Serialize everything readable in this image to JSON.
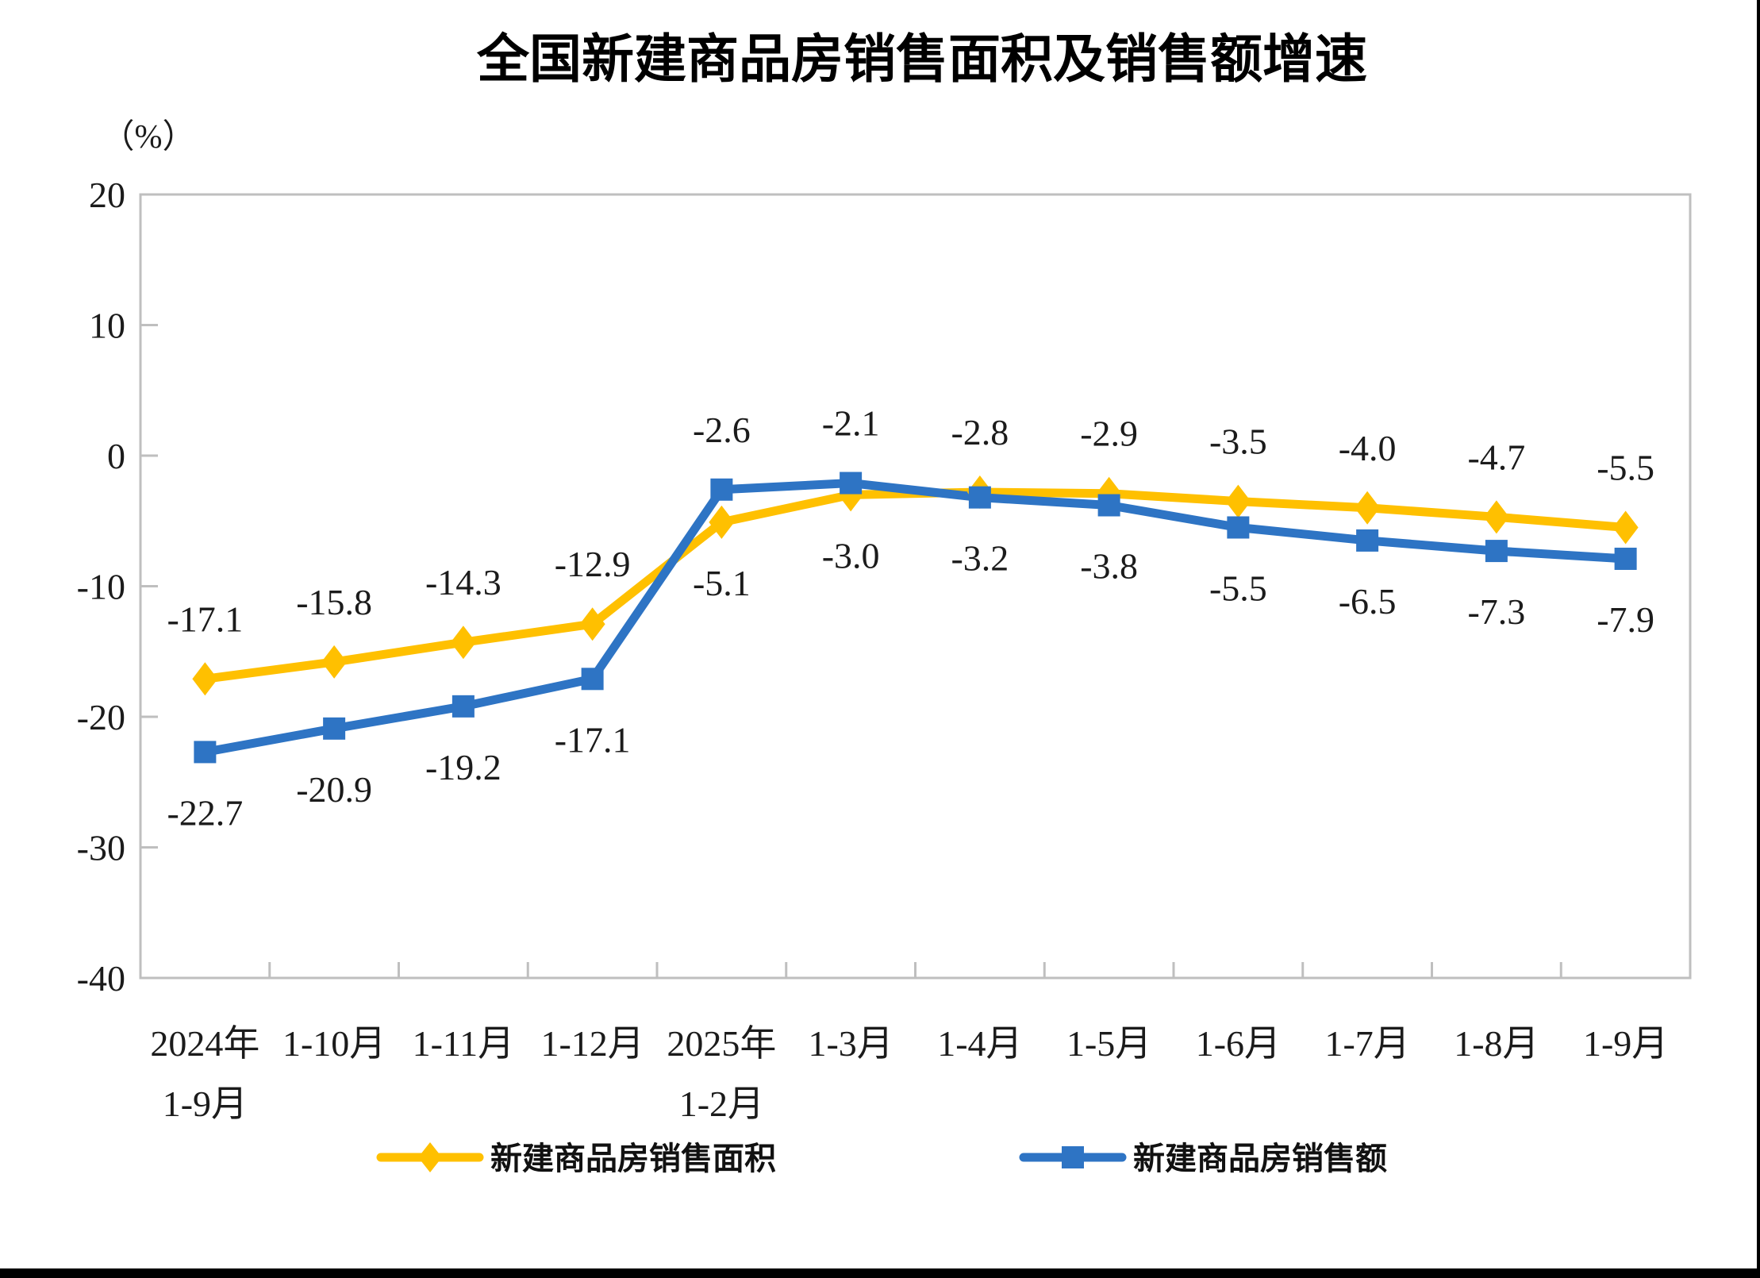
{
  "page": {
    "background": "#ffffff",
    "bottom_bar_color": "#000000",
    "right_bar_color": "#000000"
  },
  "chart_data": {
    "type": "line",
    "title": "全国新建商品房销售面积及销售额增速",
    "unit_label": "（%）",
    "categories": [
      "2024年\n1-9月",
      "1-10月",
      "1-11月",
      "1-12月",
      "2025年\n1-2月",
      "1-3月",
      "1-4月",
      "1-5月",
      "1-6月",
      "1-7月",
      "1-8月",
      "1-9月"
    ],
    "series": [
      {
        "key": "sales-area",
        "name": "新建商品房销售面积",
        "color": "#FFC000",
        "marker": "diamond",
        "values": [
          -17.1,
          -15.8,
          -14.3,
          -12.9,
          -5.1,
          -3.0,
          -2.8,
          -2.9,
          -3.5,
          -4.0,
          -4.7,
          -5.5
        ],
        "label_side": [
          "above",
          "above",
          "above",
          "above",
          "below",
          "below",
          "above",
          "above",
          "above",
          "above",
          "above",
          "above"
        ]
      },
      {
        "key": "sales-amount",
        "name": "新建商品房销售额",
        "color": "#2E74C4",
        "marker": "square",
        "values": [
          -22.7,
          -20.9,
          -19.2,
          -17.1,
          -2.6,
          -2.1,
          -3.2,
          -3.8,
          -5.5,
          -6.5,
          -7.3,
          -7.9
        ],
        "label_side": [
          "below",
          "below",
          "below",
          "below",
          "above",
          "above",
          "below",
          "below",
          "below",
          "below",
          "below",
          "below"
        ]
      }
    ],
    "ylim": [
      -40,
      20
    ],
    "yticks": [
      20,
      10,
      0,
      -10,
      -20,
      -30,
      -40
    ],
    "grid": false,
    "legend_position": "bottom",
    "axis_color": "#bfbfbf",
    "text_color": "#1b1b1b",
    "value_decimals": 1
  }
}
